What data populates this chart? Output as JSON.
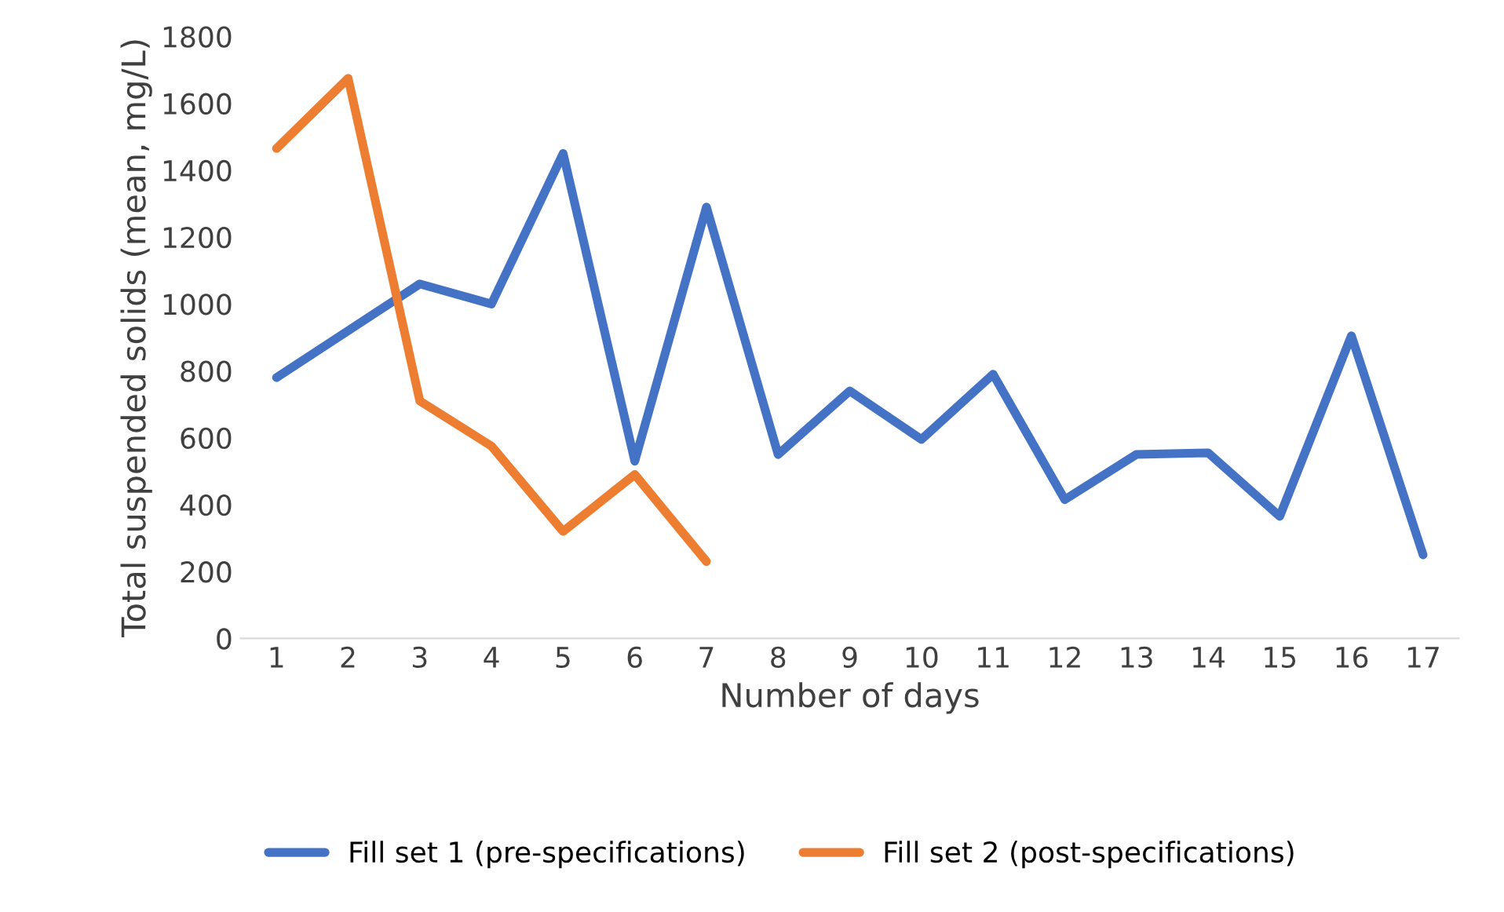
{
  "chart_data": {
    "type": "line",
    "xlabel": "Number of days",
    "ylabel": "Total suspended solids (mean, mg/L)",
    "categories": [
      "1",
      "2",
      "3",
      "4",
      "5",
      "6",
      "7",
      "8",
      "9",
      "10",
      "11",
      "12",
      "13",
      "14",
      "15",
      "16",
      "17"
    ],
    "series": [
      {
        "name": "Fill set 1 (pre-specifications)",
        "color": "#4472c4",
        "values": [
          780,
          920,
          1060,
          1000,
          1450,
          530,
          1290,
          550,
          740,
          595,
          790,
          415,
          550,
          555,
          365,
          905,
          250
        ]
      },
      {
        "name": "Fill set 2 (post-specifications)",
        "color": "#ed7d31",
        "values": [
          1465,
          1675,
          710,
          575,
          320,
          490,
          230,
          null,
          null,
          null,
          null,
          null,
          null,
          null,
          null,
          null,
          null
        ]
      }
    ],
    "ylim": [
      0,
      1800
    ],
    "yticks": [
      0,
      200,
      400,
      600,
      800,
      1000,
      1200,
      1400,
      1600,
      1800
    ],
    "grid": false,
    "legend": "bottom",
    "marker": "none",
    "line_style": "solid"
  }
}
